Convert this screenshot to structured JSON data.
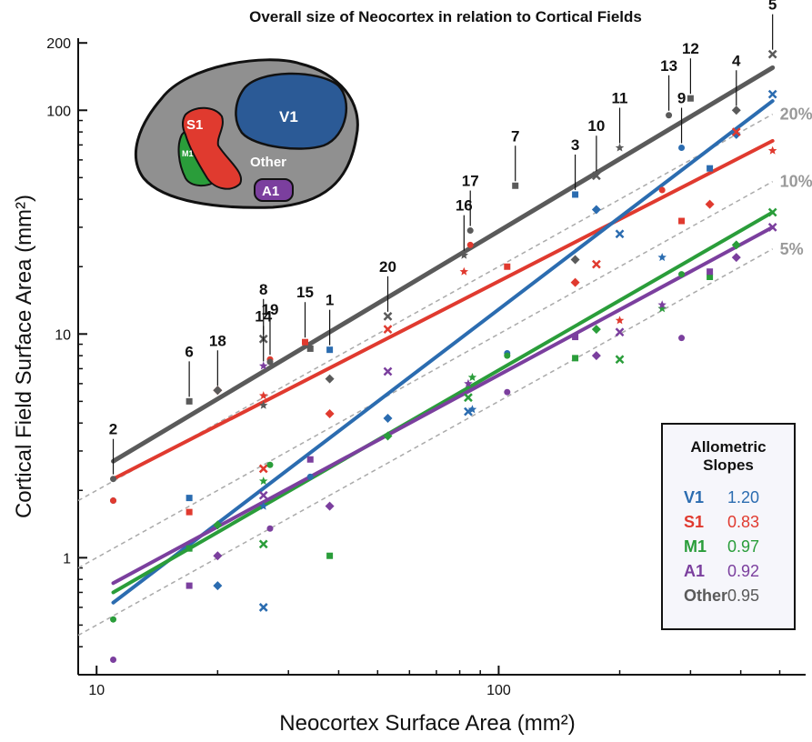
{
  "chart_data": {
    "type": "scatter",
    "title": "Overall size of Neocortex in relation to Cortical Fields",
    "xlabel": "Neocortex Surface Area (mm²)",
    "ylabel": "Cortical Field Surface Area (mm²)",
    "x_scale": "log",
    "y_scale": "log",
    "xlim": [
      9,
      580
    ],
    "ylim": [
      0.3,
      210
    ],
    "x_ticks": [
      {
        "value": 10,
        "label": "10"
      },
      {
        "value": 100,
        "label": "100"
      }
    ],
    "y_ticks": [
      {
        "value": 1,
        "label": "1"
      },
      {
        "value": 10,
        "label": "10"
      },
      {
        "value": 100,
        "label": "100"
      },
      {
        "value": 200,
        "label": "200"
      }
    ],
    "grid": false,
    "colors": {
      "V1": "#2b6cb0",
      "S1": "#e03a2f",
      "M1": "#2a9d3a",
      "A1": "#7b3f9e",
      "Other": "#5a5a5a",
      "reference": "#aaaaaa"
    },
    "series": [
      {
        "name": "V1",
        "slope": "1.20",
        "fit": [
          [
            11,
            0.63
          ],
          [
            480,
            110
          ]
        ],
        "points": [
          [
            11,
            1.8
          ],
          [
            17,
            1.85
          ],
          [
            20,
            0.75
          ],
          [
            26,
            0.6
          ],
          [
            26,
            1.7
          ],
          [
            34,
            2.3
          ],
          [
            38,
            8.5
          ],
          [
            53,
            4.2
          ],
          [
            84,
            4.5
          ],
          [
            86,
            4.6
          ],
          [
            105,
            8.2
          ],
          [
            155,
            42
          ],
          [
            175,
            36
          ],
          [
            200,
            28
          ],
          [
            255,
            22
          ],
          [
            285,
            68
          ],
          [
            335,
            55
          ],
          [
            390,
            78
          ],
          [
            480,
            118
          ]
        ]
      },
      {
        "name": "S1",
        "slope": "0.83",
        "fit": [
          [
            11,
            2.25
          ],
          [
            480,
            73
          ]
        ],
        "points": [
          [
            11,
            1.8
          ],
          [
            17,
            1.6
          ],
          [
            20,
            5.6
          ],
          [
            26,
            2.5
          ],
          [
            26,
            5.3
          ],
          [
            27,
            7.7
          ],
          [
            33,
            9.2
          ],
          [
            38,
            4.4
          ],
          [
            53,
            10.5
          ],
          [
            82,
            19
          ],
          [
            85,
            25
          ],
          [
            105,
            20
          ],
          [
            155,
            17
          ],
          [
            175,
            20.5
          ],
          [
            200,
            11.5
          ],
          [
            255,
            44
          ],
          [
            285,
            32
          ],
          [
            335,
            38
          ],
          [
            390,
            80
          ],
          [
            480,
            66
          ]
        ]
      },
      {
        "name": "M1",
        "slope": "0.97",
        "fit": [
          [
            11,
            0.7
          ],
          [
            480,
            35
          ]
        ],
        "points": [
          [
            11,
            0.53
          ],
          [
            17,
            1.1
          ],
          [
            20,
            1.4
          ],
          [
            26,
            1.15
          ],
          [
            26,
            2.2
          ],
          [
            27,
            2.6
          ],
          [
            38,
            1.02
          ],
          [
            53,
            3.5
          ],
          [
            84,
            5.2
          ],
          [
            86,
            6.4
          ],
          [
            105,
            8.0
          ],
          [
            155,
            7.8
          ],
          [
            175,
            10.5
          ],
          [
            200,
            7.7
          ],
          [
            255,
            13
          ],
          [
            285,
            18.5
          ],
          [
            335,
            18
          ],
          [
            390,
            25
          ],
          [
            480,
            35
          ]
        ]
      },
      {
        "name": "A1",
        "slope": "0.92",
        "fit": [
          [
            11,
            0.77
          ],
          [
            480,
            30
          ]
        ],
        "points": [
          [
            11,
            0.35
          ],
          [
            17,
            0.75
          ],
          [
            20,
            1.02
          ],
          [
            26,
            1.9
          ],
          [
            26,
            7.2
          ],
          [
            27,
            1.35
          ],
          [
            34,
            2.75
          ],
          [
            38,
            1.7
          ],
          [
            53,
            6.8
          ],
          [
            84,
            6.0
          ],
          [
            105,
            5.5
          ],
          [
            155,
            9.7
          ],
          [
            175,
            8.0
          ],
          [
            200,
            10.2
          ],
          [
            255,
            13.5
          ],
          [
            285,
            9.6
          ],
          [
            335,
            19
          ],
          [
            390,
            22
          ],
          [
            480,
            30
          ]
        ]
      },
      {
        "name": "Other",
        "slope": "0.95",
        "fit": [
          [
            11,
            2.7
          ],
          [
            480,
            155
          ]
        ],
        "points": [
          [
            11,
            2.25
          ],
          [
            17,
            5.0
          ],
          [
            20,
            5.6
          ],
          [
            26,
            9.5
          ],
          [
            26,
            4.8
          ],
          [
            27,
            7.5
          ],
          [
            34,
            8.6
          ],
          [
            38,
            6.3
          ],
          [
            53,
            12
          ],
          [
            82,
            22.5
          ],
          [
            85,
            29
          ],
          [
            110,
            46
          ],
          [
            155,
            21.5
          ],
          [
            175,
            51
          ],
          [
            200,
            68
          ],
          [
            265,
            95
          ],
          [
            300,
            113
          ],
          [
            390,
            100
          ],
          [
            480,
            178
          ]
        ]
      }
    ],
    "species_labels": [
      {
        "label": "1",
        "x": 38,
        "y": 8.5
      },
      {
        "label": "2",
        "x": 11,
        "y": 2.25
      },
      {
        "label": "3",
        "x": 155,
        "y": 42
      },
      {
        "label": "4",
        "x": 390,
        "y": 100
      },
      {
        "label": "5",
        "x": 480,
        "y": 178
      },
      {
        "label": "6",
        "x": 17,
        "y": 5.0
      },
      {
        "label": "7",
        "x": 110,
        "y": 46
      },
      {
        "label": "8",
        "x": 26,
        "y": 9.5
      },
      {
        "label": "9",
        "x": 285,
        "y": 68
      },
      {
        "label": "10",
        "x": 175,
        "y": 51
      },
      {
        "label": "11",
        "x": 200,
        "y": 68
      },
      {
        "label": "12",
        "x": 300,
        "y": 113
      },
      {
        "label": "13",
        "x": 265,
        "y": 95
      },
      {
        "label": "14",
        "x": 26,
        "y": 7.2
      },
      {
        "label": "15",
        "x": 33,
        "y": 9.2
      },
      {
        "label": "16",
        "x": 82,
        "y": 22.5
      },
      {
        "label": "17",
        "x": 85,
        "y": 29
      },
      {
        "label": "18",
        "x": 20,
        "y": 5.6
      },
      {
        "label": "19",
        "x": 27,
        "y": 7.7
      },
      {
        "label": "20",
        "x": 53,
        "y": 12
      }
    ],
    "reference_lines": [
      {
        "label": "20%",
        "fraction": 0.2
      },
      {
        "label": "10%",
        "fraction": 0.1
      },
      {
        "label": "5%",
        "fraction": 0.05
      }
    ],
    "legend": {
      "title_line1": "Allometric",
      "title_line2": "Slopes",
      "placement": "bottom-right"
    },
    "inset": {
      "labels": [
        "S1",
        "M1",
        "V1",
        "Other",
        "A1"
      ]
    }
  }
}
